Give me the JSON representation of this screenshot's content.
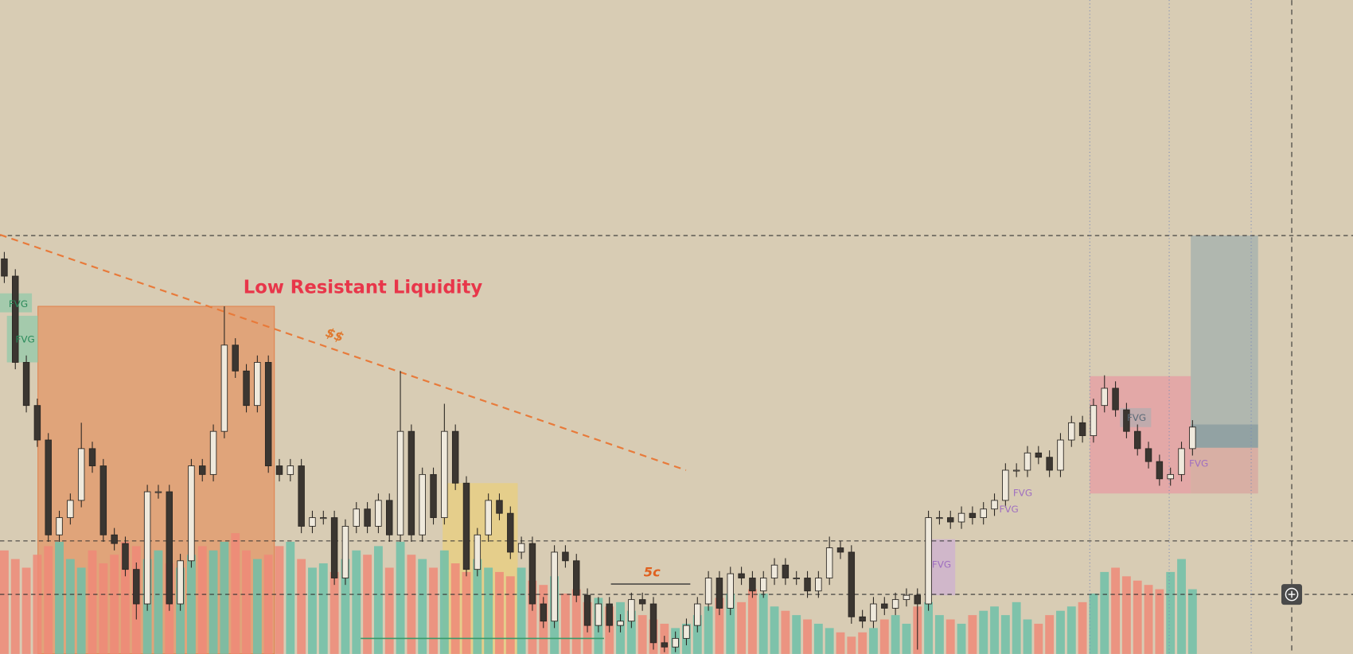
{
  "chart_data": {
    "type": "candlestick",
    "title": "Low Resistant Liquidity",
    "annotations": [
      "$$",
      "5c"
    ],
    "zone_labels": [
      "FVG",
      "FVG",
      "FVG",
      "FVG",
      "FVG",
      "FVG",
      "FVG"
    ],
    "xlim": [
      0,
      108
    ],
    "ylim": [
      0,
      758
    ],
    "up_color": "#efe9dc",
    "down_color": "#3b3631",
    "volume_up_color": "#6fc0a8",
    "volume_down_color": "#ee8a78",
    "open": [
      458,
      438,
      338,
      288,
      248,
      138,
      158,
      178,
      238,
      218,
      138,
      128,
      98,
      58,
      188,
      188,
      58,
      108,
      218,
      208,
      258,
      358,
      328,
      288,
      338,
      218,
      208,
      218,
      148,
      158,
      158,
      88,
      148,
      168,
      148,
      178,
      138,
      258,
      138,
      208,
      158,
      258,
      198,
      98,
      138,
      178,
      163,
      118,
      128,
      58,
      38,
      118,
      108,
      68,
      33,
      58,
      33,
      38,
      63,
      58,
      13,
      8,
      18,
      33,
      58,
      88,
      53,
      93,
      88,
      73,
      88,
      103,
      88,
      88,
      73,
      88,
      123,
      118,
      43,
      38,
      58,
      53,
      63,
      68,
      58,
      158,
      158,
      153,
      163,
      158,
      168,
      178,
      213,
      213,
      233,
      228,
      213,
      248,
      268,
      253,
      288,
      308,
      283,
      258,
      238,
      223,
      203,
      208,
      238
    ],
    "high": [
      466,
      446,
      346,
      296,
      256,
      166,
      186,
      268,
      246,
      226,
      146,
      136,
      106,
      196,
      196,
      196,
      116,
      226,
      226,
      266,
      403,
      366,
      336,
      346,
      346,
      226,
      226,
      226,
      166,
      166,
      166,
      156,
      176,
      176,
      186,
      186,
      328,
      266,
      216,
      216,
      290,
      266,
      206,
      146,
      186,
      186,
      171,
      136,
      136,
      66,
      126,
      126,
      116,
      76,
      66,
      66,
      46,
      71,
      71,
      66,
      21,
      26,
      41,
      66,
      96,
      96,
      101,
      101,
      96,
      96,
      111,
      111,
      96,
      96,
      96,
      136,
      131,
      126,
      51,
      66,
      66,
      71,
      76,
      76,
      166,
      166,
      166,
      171,
      171,
      176,
      186,
      221,
      221,
      241,
      241,
      236,
      256,
      276,
      276,
      296,
      323,
      316,
      291,
      266,
      246,
      231,
      216,
      246,
      271
    ],
    "low": [
      430,
      330,
      280,
      240,
      130,
      130,
      150,
      170,
      210,
      130,
      120,
      90,
      40,
      50,
      180,
      50,
      50,
      100,
      200,
      200,
      250,
      320,
      280,
      280,
      210,
      200,
      200,
      140,
      140,
      150,
      80,
      80,
      140,
      140,
      140,
      130,
      130,
      130,
      130,
      150,
      150,
      190,
      90,
      90,
      130,
      155,
      110,
      110,
      50,
      30,
      30,
      100,
      60,
      25,
      25,
      25,
      25,
      30,
      50,
      5,
      2,
      2,
      10,
      25,
      50,
      45,
      45,
      80,
      65,
      65,
      80,
      80,
      80,
      65,
      65,
      80,
      110,
      35,
      30,
      30,
      45,
      45,
      55,
      5,
      50,
      150,
      145,
      145,
      150,
      150,
      160,
      170,
      205,
      205,
      220,
      205,
      205,
      240,
      245,
      245,
      280,
      275,
      250,
      230,
      215,
      195,
      195,
      200,
      230
    ],
    "close": [
      438,
      338,
      288,
      248,
      138,
      158,
      178,
      238,
      218,
      138,
      128,
      98,
      58,
      188,
      188,
      58,
      108,
      218,
      208,
      258,
      358,
      328,
      288,
      338,
      218,
      208,
      218,
      148,
      158,
      158,
      88,
      148,
      168,
      148,
      178,
      138,
      258,
      138,
      208,
      158,
      258,
      198,
      98,
      138,
      178,
      163,
      118,
      128,
      58,
      38,
      118,
      108,
      68,
      33,
      58,
      33,
      38,
      63,
      58,
      13,
      8,
      18,
      33,
      58,
      88,
      53,
      93,
      88,
      73,
      88,
      103,
      88,
      88,
      73,
      88,
      123,
      118,
      43,
      38,
      58,
      53,
      63,
      68,
      58,
      158,
      158,
      153,
      163,
      158,
      168,
      178,
      213,
      213,
      233,
      228,
      213,
      248,
      268,
      253,
      288,
      308,
      283,
      258,
      238,
      223,
      203,
      208,
      238,
      263
    ],
    "volume": [
      120,
      110,
      100,
      115,
      125,
      130,
      110,
      100,
      120,
      105,
      115,
      130,
      125,
      110,
      120,
      105,
      100,
      115,
      125,
      120,
      130,
      140,
      120,
      110,
      115,
      125,
      130,
      110,
      100,
      105,
      95,
      110,
      120,
      115,
      125,
      100,
      130,
      115,
      110,
      100,
      120,
      105,
      95,
      110,
      100,
      95,
      90,
      100,
      85,
      80,
      90,
      70,
      75,
      60,
      65,
      55,
      60,
      50,
      45,
      40,
      35,
      30,
      35,
      45,
      55,
      65,
      70,
      60,
      75,
      70,
      55,
      50,
      45,
      40,
      35,
      30,
      25,
      20,
      25,
      30,
      40,
      45,
      35,
      55,
      60,
      45,
      40,
      35,
      45,
      50,
      55,
      45,
      60,
      40,
      35,
      45,
      50,
      55,
      60,
      70,
      95,
      100,
      90,
      85,
      80,
      75,
      95,
      110,
      75
    ]
  }
}
